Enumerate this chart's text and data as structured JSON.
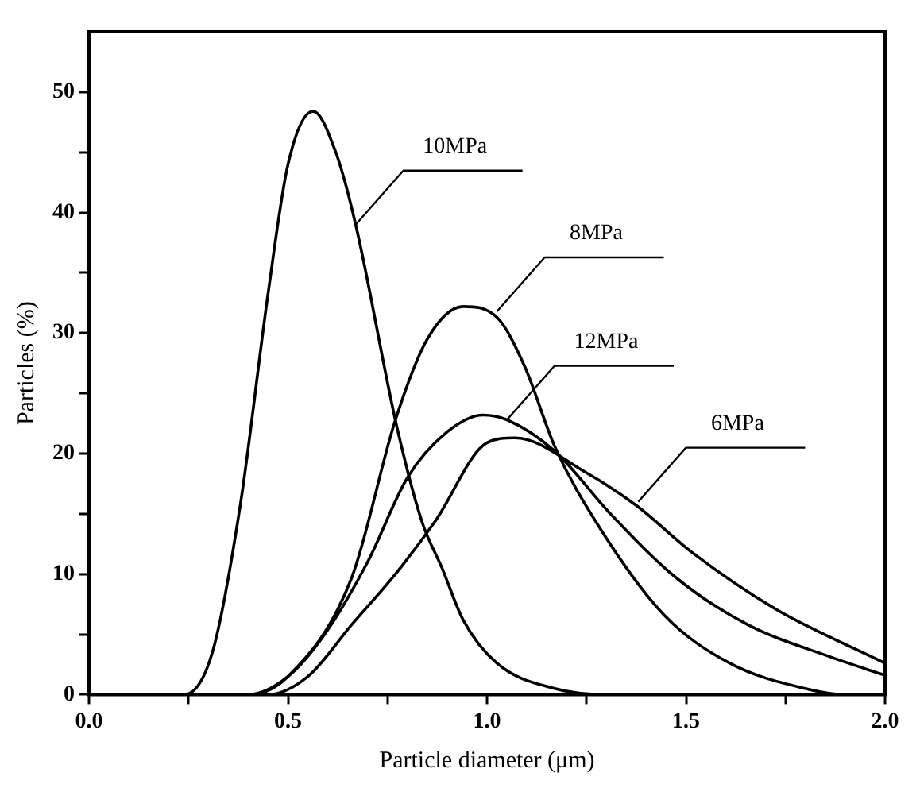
{
  "chart_data": {
    "type": "line",
    "xlabel": "Particle diameter (μm)",
    "ylabel": "Particles (%)",
    "xlim": [
      0,
      2
    ],
    "ylim": [
      0,
      55
    ],
    "xticks": [
      {
        "value": 0,
        "label": "0.0"
      },
      {
        "value": 0.25,
        "label": null
      },
      {
        "value": 0.5,
        "label": "0.5"
      },
      {
        "value": 0.75,
        "label": null
      },
      {
        "value": 1,
        "label": "1.0"
      },
      {
        "value": 1.25,
        "label": null
      },
      {
        "value": 1.5,
        "label": "1.5"
      },
      {
        "value": 1.75,
        "label": null
      },
      {
        "value": 2,
        "label": "2.0"
      }
    ],
    "yticks": [
      0,
      {
        "value": 5,
        "label": null
      },
      10,
      {
        "value": 15,
        "label": null
      },
      20,
      {
        "value": 25,
        "label": null
      },
      30,
      {
        "value": 35,
        "label": null
      },
      40,
      {
        "value": 45,
        "label": null
      },
      50
    ],
    "grid": false,
    "legend": false,
    "marker": "none",
    "line_style": "solid",
    "series": [
      {
        "color": "#000000",
        "x": [
          0.2,
          0.24,
          0.31,
          0.38,
          0.45,
          0.5,
          0.563,
          0.62,
          0.67,
          0.773,
          0.836,
          0.887,
          0.94,
          1.025,
          1.17,
          1.3,
          2.0
        ],
        "values": [
          0,
          0,
          3.5,
          15.7,
          33.3,
          44,
          48.4,
          45,
          39,
          22.3,
          14.4,
          10.5,
          6.2,
          2.6,
          0.5,
          0,
          0
        ]
      },
      {
        "color": "#000000",
        "x": [
          0,
          0.4,
          0.5,
          0.66,
          0.77,
          0.85,
          0.94,
          1.025,
          1.095,
          1.17,
          1.28,
          1.445,
          1.61,
          1.8,
          1.9,
          2.0
        ],
        "values": [
          0,
          0,
          1.5,
          9.7,
          22.8,
          29.5,
          32.2,
          31.3,
          27.2,
          20.6,
          14,
          6.6,
          2.6,
          0.5,
          0,
          0
        ]
      },
      {
        "color": "#000000",
        "x": [
          0,
          0.4,
          0.5,
          0.59,
          0.7,
          0.8,
          0.9,
          0.99,
          1.05,
          1.17,
          1.31,
          1.475,
          1.655,
          1.865,
          2.0
        ],
        "values": [
          0,
          0,
          1.5,
          4.9,
          11,
          18,
          21.8,
          23.2,
          22.8,
          20.2,
          15,
          9.7,
          5.8,
          3.1,
          1.6
        ]
      },
      {
        "color": "#000000",
        "x": [
          0,
          0.45,
          0.55,
          0.66,
          0.77,
          0.87,
          1.0,
          1.07,
          1.25,
          1.375,
          1.515,
          1.725,
          2.0
        ],
        "values": [
          0,
          0,
          1.5,
          5.8,
          10,
          14.4,
          20.9,
          21.3,
          18.4,
          15.7,
          11.8,
          7.1,
          2.6
        ]
      }
    ],
    "annotations": [
      {
        "text": "10MPa",
        "x": 0.67,
        "y": 39
      },
      {
        "text": "8MPa",
        "x": 1.025,
        "y": 31.8
      },
      {
        "text": "12MPa",
        "x": 1.05,
        "y": 22.8
      },
      {
        "text": "6MPa",
        "x": 1.38,
        "y": 16
      }
    ]
  }
}
